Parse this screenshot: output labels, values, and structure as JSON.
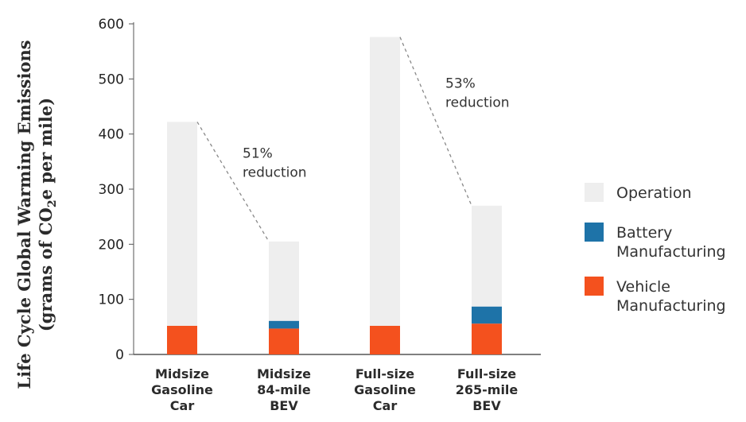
{
  "chart_data": {
    "type": "bar",
    "stacked": true,
    "ylabel_line1": "Life Cycle Global Warming Emissions",
    "ylabel_line2_prefix": "(grams of CO",
    "ylabel_line2_sub": "2",
    "ylabel_line2_suffix": "e per mile)",
    "ylim": [
      0,
      600
    ],
    "yticks": [
      "0",
      "100",
      "200",
      "300",
      "400",
      "500",
      "600"
    ],
    "categories": [
      [
        "Midsize",
        "Gasoline",
        "Car"
      ],
      [
        "Midsize",
        "84-mile",
        "BEV"
      ],
      [
        "Full-size",
        "Gasoline",
        "Car"
      ],
      [
        "Full-size",
        "265-mile",
        "BEV"
      ]
    ],
    "series": [
      {
        "name": "Vehicle Manufacturing",
        "color": "#f4511e",
        "values": [
          52,
          47,
          52,
          56
        ]
      },
      {
        "name": "Battery Manufacturing",
        "color": "#1e73a8",
        "values": [
          0,
          14,
          0,
          31
        ]
      },
      {
        "name": "Operation",
        "color": "#eeeeee",
        "values": [
          370,
          144,
          524,
          183
        ]
      }
    ],
    "legend_order": [
      "Operation",
      "Battery Manufacturing",
      "Vehicle Manufacturing"
    ],
    "legend_labels": {
      "Operation": [
        "Operation"
      ],
      "Battery Manufacturing": [
        "Battery",
        "Manufacturing"
      ],
      "Vehicle Manufacturing": [
        "Vehicle",
        "Manufacturing"
      ]
    },
    "annotations": [
      {
        "from": 0,
        "to": 1,
        "lines": [
          "51%",
          "reduction"
        ]
      },
      {
        "from": 2,
        "to": 3,
        "lines": [
          "53%",
          "reduction"
        ]
      }
    ],
    "legend_position": "right",
    "grid": false
  }
}
